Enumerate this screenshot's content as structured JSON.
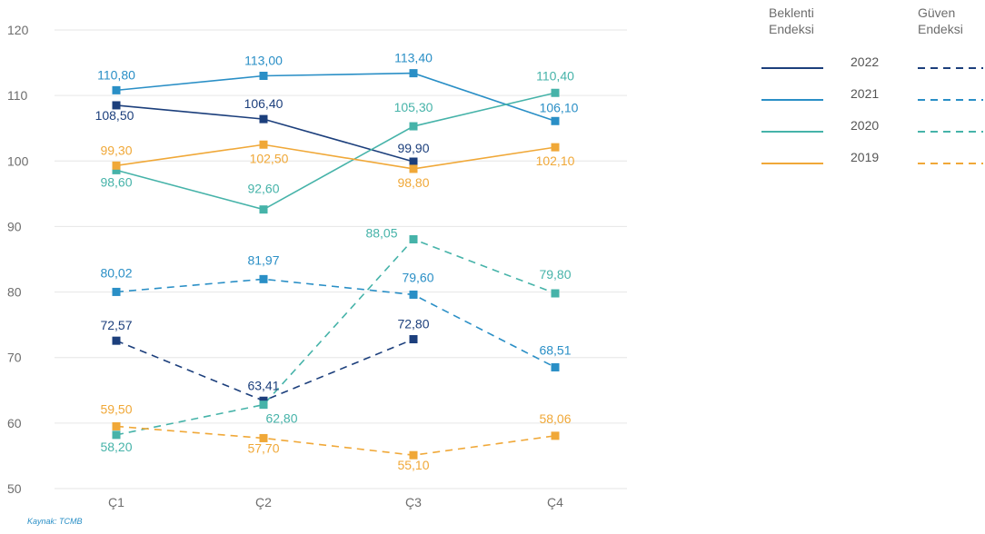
{
  "chart_data": {
    "type": "line",
    "categories": [
      "Ç1",
      "Ç2",
      "Ç3",
      "Ç4"
    ],
    "ylim": [
      50,
      120
    ],
    "yticks": [
      50,
      60,
      70,
      80,
      90,
      100,
      110,
      120
    ],
    "grid": true,
    "legend_position": "top-right",
    "legend_headers": {
      "beklenti_line1": "Beklenti",
      "beklenti_line2": "Endeksi",
      "guven_line1": "Güven",
      "guven_line2": "Endeksi"
    },
    "source": "Kaynak: TCMB",
    "series": [
      {
        "group": "Beklenti Endeksi",
        "year": "2022",
        "color": "#1c3f7c",
        "dash": false,
        "values": [
          108.5,
          106.4,
          99.9,
          null
        ],
        "labels": [
          "108,50",
          "106,40",
          "99,90",
          null
        ]
      },
      {
        "group": "Beklenti Endeksi",
        "year": "2021",
        "color": "#2a8fc6",
        "dash": false,
        "values": [
          110.8,
          113.0,
          113.4,
          106.1
        ],
        "labels": [
          "110,80",
          "113,00",
          "113,40",
          "106,10"
        ]
      },
      {
        "group": "Beklenti Endeksi",
        "year": "2020",
        "color": "#46b3a9",
        "dash": false,
        "values": [
          98.6,
          92.6,
          105.3,
          110.4
        ],
        "labels": [
          "98,60",
          "92,60",
          "105,30",
          "110,40"
        ]
      },
      {
        "group": "Beklenti Endeksi",
        "year": "2019",
        "color": "#f0a838",
        "dash": false,
        "values": [
          99.3,
          102.5,
          98.8,
          102.1
        ],
        "labels": [
          "99,30",
          "102,50",
          "98,80",
          "102,10"
        ]
      },
      {
        "group": "Güven Endeksi",
        "year": "2022",
        "color": "#1c3f7c",
        "dash": true,
        "values": [
          72.57,
          63.41,
          72.8,
          null
        ],
        "labels": [
          "72,57",
          "63,41",
          "72,80",
          null
        ]
      },
      {
        "group": "Güven Endeksi",
        "year": "2021",
        "color": "#2a8fc6",
        "dash": true,
        "values": [
          80.02,
          81.97,
          79.6,
          68.51
        ],
        "labels": [
          "80,02",
          "81,97",
          "79,60",
          "68,51"
        ]
      },
      {
        "group": "Güven Endeksi",
        "year": "2020",
        "color": "#46b3a9",
        "dash": true,
        "values": [
          58.2,
          62.8,
          88.05,
          79.8
        ],
        "labels": [
          "58,20",
          "62,80",
          "88,05",
          "79,80"
        ]
      },
      {
        "group": "Güven Endeksi",
        "year": "2019",
        "color": "#f0a838",
        "dash": true,
        "values": [
          59.5,
          57.7,
          55.1,
          58.06
        ],
        "labels": [
          "59,50",
          "57,70",
          "55,10",
          "58,06"
        ]
      }
    ],
    "legend_years": [
      "2022",
      "2021",
      "2020",
      "2019"
    ]
  }
}
